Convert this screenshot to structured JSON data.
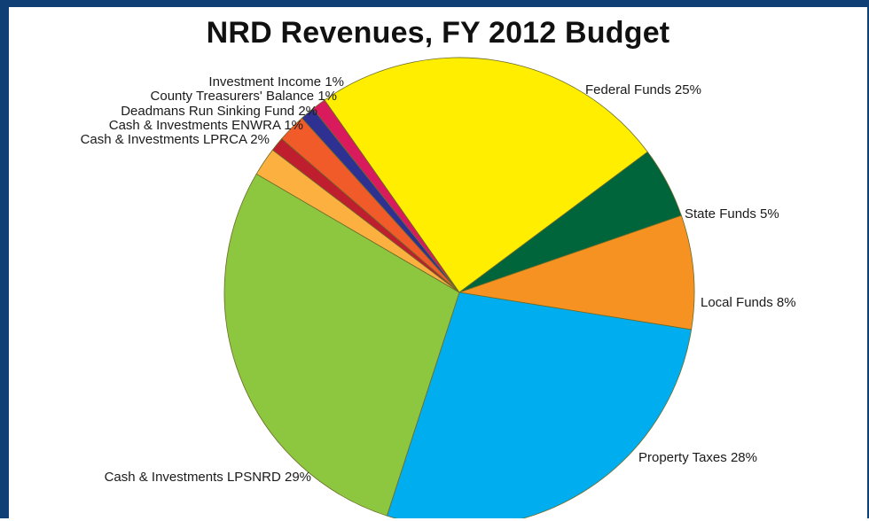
{
  "chart_data": {
    "type": "pie",
    "title": "NRD Revenues, FY 2012 Budget",
    "start_angle_deg": -35,
    "direction": "clockwise",
    "slices": [
      {
        "label": "Federal Funds 25%",
        "value": 25,
        "color": "#ffee00"
      },
      {
        "label": "State Funds 5%",
        "value": 5,
        "color": "#00653a"
      },
      {
        "label": "Local Funds 8%",
        "value": 8,
        "color": "#f59222"
      },
      {
        "label": "Property Taxes 28%",
        "value": 28,
        "color": "#00aeef"
      },
      {
        "label": "Cash & Investments LPSNRD 29%",
        "value": 29,
        "color": "#8dc63f"
      },
      {
        "label": "Cash & Investments LPRCA 2%",
        "value": 2,
        "color": "#fbb040"
      },
      {
        "label": "Cash & Investments ENWRA 1%",
        "value": 1,
        "color": "#be1e2d"
      },
      {
        "label": "Deadmans Run Sinking Fund 2%",
        "value": 2,
        "color": "#f15a29"
      },
      {
        "label": "County Treasurers' Balance 1%",
        "value": 1,
        "color": "#2e3192"
      },
      {
        "label": "Investment Income 1%",
        "value": 1,
        "color": "#d91a5d"
      }
    ]
  }
}
